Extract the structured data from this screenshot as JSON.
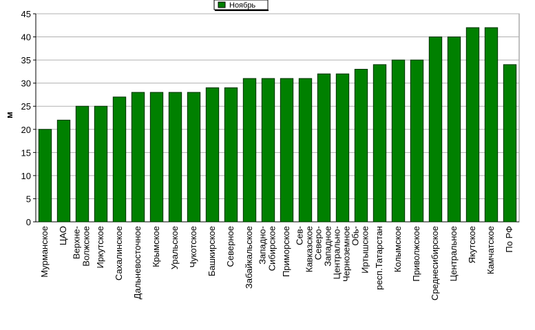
{
  "chart_data": {
    "type": "bar",
    "y_label": "м",
    "legend_position": "top",
    "categories": [
      "Мурманское",
      "ЦАО",
      "Верхне-\nВолжское",
      "Иркутское",
      "Сахалинское",
      "Дальневосточное",
      "Крымское",
      "Уральское",
      "Чукотское",
      "Башкирское",
      "Северное",
      "Забайкальское",
      "Западно-\nСибирское",
      "Приморское",
      "Сев-\nКавказское",
      "Северо-\nЗападное",
      "Центрально-\nЧерноземное",
      "Обь-\nИртышское",
      "респ.Татарстан",
      "Колымское",
      "Приволжское",
      "Среднесибирское",
      "Центральное",
      "Якутское",
      "Камчатское",
      "По РФ"
    ],
    "series": [
      {
        "name": "Ноябрь",
        "color": "#008000",
        "values": [
          20,
          22,
          25,
          25,
          27,
          28,
          28,
          28,
          28,
          29,
          29,
          31,
          31,
          31,
          31,
          32,
          32,
          33,
          34,
          35,
          35,
          40,
          40,
          42,
          42,
          34
        ]
      }
    ],
    "ylim": [
      0,
      45
    ],
    "yticks": [
      0,
      5,
      10,
      15,
      20,
      25,
      30,
      35,
      40,
      45
    ],
    "grid": true
  }
}
